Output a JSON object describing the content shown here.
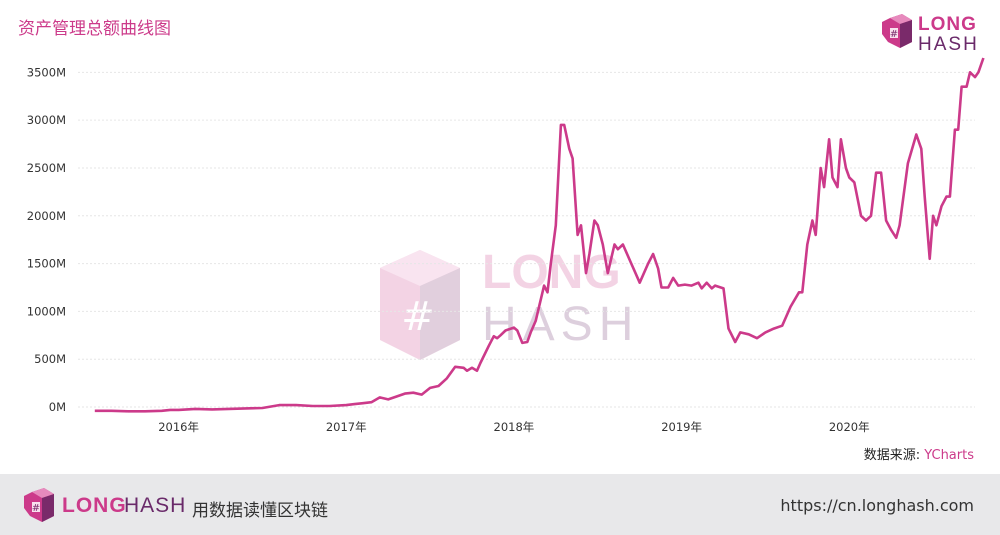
{
  "header": {
    "title": "资产管理总额曲线图",
    "logo_word1": "LONG",
    "logo_word2": "HASH"
  },
  "watermark": {
    "word1": "LONG",
    "word2": "HASH"
  },
  "source": {
    "label": "数据来源: ",
    "value": "YCharts"
  },
  "footer": {
    "logo_word1": "LONG",
    "logo_word2": "HASH",
    "slogan": "用数据读懂区块链",
    "url": "https://cn.longhash.com"
  },
  "colors": {
    "line": "#cc3a8a",
    "title": "#cc3a8a",
    "footer_bg": "#e8e8ea"
  },
  "chart_data": {
    "type": "line",
    "title": "资产管理总额曲线图",
    "xlabel": "",
    "ylabel": "",
    "ylim": [
      0,
      3650
    ],
    "xlim": [
      2015.4,
      2020.75
    ],
    "y_ticks": [
      0,
      500,
      1000,
      1500,
      2000,
      2500,
      3000,
      3500
    ],
    "y_tick_labels": [
      "0M",
      "500M",
      "1000M",
      "1500M",
      "2000M",
      "2500M",
      "3000M",
      "3500M"
    ],
    "x_ticks": [
      2016,
      2017,
      2018,
      2019,
      2020
    ],
    "x_tick_labels": [
      "2016年",
      "2017年",
      "2018年",
      "2019年",
      "2020年"
    ],
    "grid": true,
    "series": [
      {
        "values": [
          [
            2015.5,
            -40
          ],
          [
            2015.6,
            -40
          ],
          [
            2015.7,
            -45
          ],
          [
            2015.8,
            -45
          ],
          [
            2015.9,
            -40
          ],
          [
            2015.95,
            -30
          ],
          [
            2016.0,
            -30
          ],
          [
            2016.1,
            -20
          ],
          [
            2016.2,
            -25
          ],
          [
            2016.3,
            -20
          ],
          [
            2016.4,
            -15
          ],
          [
            2016.5,
            -10
          ],
          [
            2016.6,
            20
          ],
          [
            2016.7,
            20
          ],
          [
            2016.8,
            10
          ],
          [
            2016.9,
            10
          ],
          [
            2017.0,
            20
          ],
          [
            2017.05,
            30
          ],
          [
            2017.1,
            40
          ],
          [
            2017.15,
            50
          ],
          [
            2017.2,
            100
          ],
          [
            2017.25,
            80
          ],
          [
            2017.3,
            110
          ],
          [
            2017.35,
            140
          ],
          [
            2017.4,
            150
          ],
          [
            2017.45,
            130
          ],
          [
            2017.5,
            200
          ],
          [
            2017.55,
            220
          ],
          [
            2017.6,
            300
          ],
          [
            2017.65,
            420
          ],
          [
            2017.7,
            410
          ],
          [
            2017.72,
            380
          ],
          [
            2017.75,
            410
          ],
          [
            2017.78,
            380
          ],
          [
            2017.8,
            460
          ],
          [
            2017.85,
            640
          ],
          [
            2017.88,
            740
          ],
          [
            2017.9,
            720
          ],
          [
            2017.92,
            750
          ],
          [
            2017.95,
            800
          ],
          [
            2018.0,
            830
          ],
          [
            2018.02,
            800
          ],
          [
            2018.05,
            670
          ],
          [
            2018.08,
            680
          ],
          [
            2018.1,
            780
          ],
          [
            2018.13,
            900
          ],
          [
            2018.15,
            1050
          ],
          [
            2018.18,
            1270
          ],
          [
            2018.2,
            1200
          ],
          [
            2018.22,
            1500
          ],
          [
            2018.25,
            1900
          ],
          [
            2018.28,
            2950
          ],
          [
            2018.3,
            2950
          ],
          [
            2018.33,
            2700
          ],
          [
            2018.35,
            2600
          ],
          [
            2018.38,
            1800
          ],
          [
            2018.4,
            1900
          ],
          [
            2018.43,
            1400
          ],
          [
            2018.45,
            1600
          ],
          [
            2018.48,
            1950
          ],
          [
            2018.5,
            1900
          ],
          [
            2018.53,
            1700
          ],
          [
            2018.56,
            1400
          ],
          [
            2018.6,
            1700
          ],
          [
            2018.62,
            1650
          ],
          [
            2018.65,
            1700
          ],
          [
            2018.7,
            1500
          ],
          [
            2018.75,
            1300
          ],
          [
            2018.8,
            1500
          ],
          [
            2018.83,
            1600
          ],
          [
            2018.86,
            1450
          ],
          [
            2018.88,
            1250
          ],
          [
            2018.92,
            1250
          ],
          [
            2018.95,
            1350
          ],
          [
            2018.98,
            1270
          ],
          [
            2019.02,
            1280
          ],
          [
            2019.06,
            1270
          ],
          [
            2019.1,
            1300
          ],
          [
            2019.12,
            1240
          ],
          [
            2019.15,
            1300
          ],
          [
            2019.18,
            1240
          ],
          [
            2019.2,
            1270
          ],
          [
            2019.25,
            1240
          ],
          [
            2019.28,
            820
          ],
          [
            2019.32,
            680
          ],
          [
            2019.35,
            780
          ],
          [
            2019.4,
            760
          ],
          [
            2019.45,
            720
          ],
          [
            2019.5,
            780
          ],
          [
            2019.55,
            820
          ],
          [
            2019.6,
            850
          ],
          [
            2019.65,
            1050
          ],
          [
            2019.7,
            1200
          ],
          [
            2019.72,
            1200
          ],
          [
            2019.75,
            1700
          ],
          [
            2019.78,
            1950
          ],
          [
            2019.8,
            1800
          ],
          [
            2019.83,
            2500
          ],
          [
            2019.85,
            2300
          ],
          [
            2019.88,
            2800
          ],
          [
            2019.9,
            2400
          ],
          [
            2019.93,
            2300
          ],
          [
            2019.95,
            2800
          ],
          [
            2019.98,
            2500
          ],
          [
            2020.0,
            2400
          ],
          [
            2020.03,
            2350
          ],
          [
            2020.07,
            2000
          ],
          [
            2020.1,
            1950
          ],
          [
            2020.13,
            2000
          ],
          [
            2020.16,
            2450
          ],
          [
            2020.19,
            2450
          ],
          [
            2020.22,
            1950
          ],
          [
            2020.25,
            1850
          ],
          [
            2020.28,
            1770
          ],
          [
            2020.3,
            1900
          ],
          [
            2020.35,
            2550
          ],
          [
            2020.4,
            2850
          ],
          [
            2020.43,
            2700
          ],
          [
            2020.45,
            2200
          ],
          [
            2020.48,
            1550
          ],
          [
            2020.5,
            2000
          ],
          [
            2020.52,
            1900
          ],
          [
            2020.55,
            2100
          ],
          [
            2020.58,
            2200
          ],
          [
            2020.6,
            2200
          ],
          [
            2020.63,
            2900
          ],
          [
            2020.65,
            2900
          ],
          [
            2020.67,
            3350
          ],
          [
            2020.7,
            3350
          ],
          [
            2020.72,
            3500
          ],
          [
            2020.75,
            3450
          ],
          [
            2020.77,
            3500
          ],
          [
            2020.8,
            3650
          ]
        ]
      }
    ]
  }
}
